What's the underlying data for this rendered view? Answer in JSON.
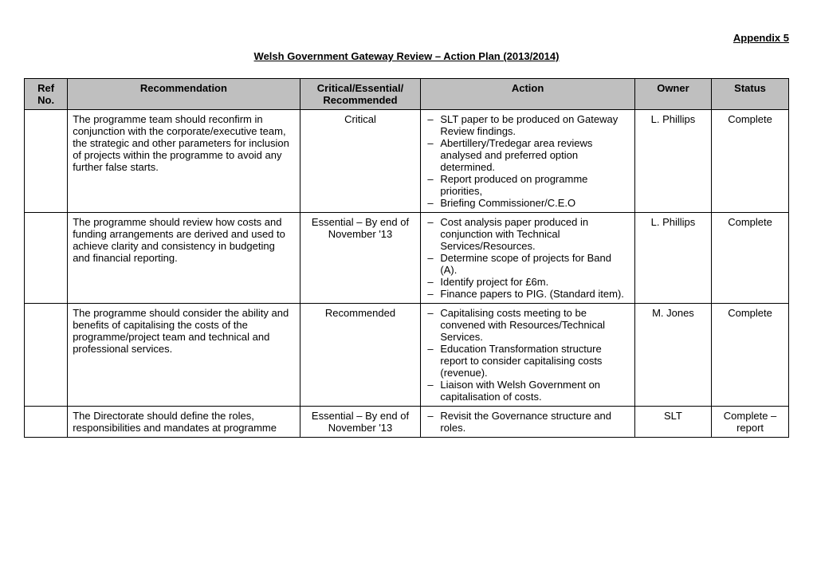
{
  "appendix_label": "Appendix 5",
  "title": "Welsh Government Gateway Review – Action Plan (2013/2014)",
  "columns": {
    "ref": "Ref No.",
    "recommendation": "Recommendation",
    "priority": "Critical/Essential/ Recommended",
    "action": "Action",
    "owner": "Owner",
    "status": "Status"
  },
  "rows": [
    {
      "ref": "",
      "recommendation": "The programme team should reconfirm in conjunction with the corporate/executive team, the strategic and other parameters for inclusion of projects within the programme to avoid any further false starts.",
      "priority": "Critical",
      "actions": [
        "SLT paper to be produced on Gateway Review findings.",
        "Abertillery/Tredegar area reviews analysed and preferred option determined.",
        "Report produced on programme priorities,",
        "Briefing Commissioner/C.E.O"
      ],
      "owner": "L. Phillips",
      "status": "Complete"
    },
    {
      "ref": "",
      "recommendation": "The programme should review how costs and funding arrangements are derived and used to achieve clarity and consistency in budgeting and financial reporting.",
      "priority": "Essential – By end of November '13",
      "actions": [
        "Cost analysis paper produced in conjunction with Technical Services/Resources.",
        "Determine scope of projects for Band (A).",
        "Identify project for £6m.",
        "Finance papers to PIG. (Standard item)."
      ],
      "owner": "L. Phillips",
      "status": "Complete"
    },
    {
      "ref": "",
      "recommendation": "The programme should consider the ability and benefits of capitalising the costs of the programme/project team and technical and professional services.",
      "priority": "Recommended",
      "actions": [
        "Capitalising costs meeting to be convened with Resources/Technical Services.",
        "Education Transformation structure report to consider capitalising costs (revenue).",
        "Liaison with Welsh Government on capitalisation of costs."
      ],
      "owner": "M. Jones",
      "status": "Complete"
    },
    {
      "ref": "",
      "recommendation": "The Directorate should define the roles, responsibilities and mandates at programme",
      "priority": "Essential – By end of November '13",
      "actions": [
        "Revisit the Governance structure and roles."
      ],
      "owner": "SLT",
      "status": "Complete – report"
    }
  ]
}
